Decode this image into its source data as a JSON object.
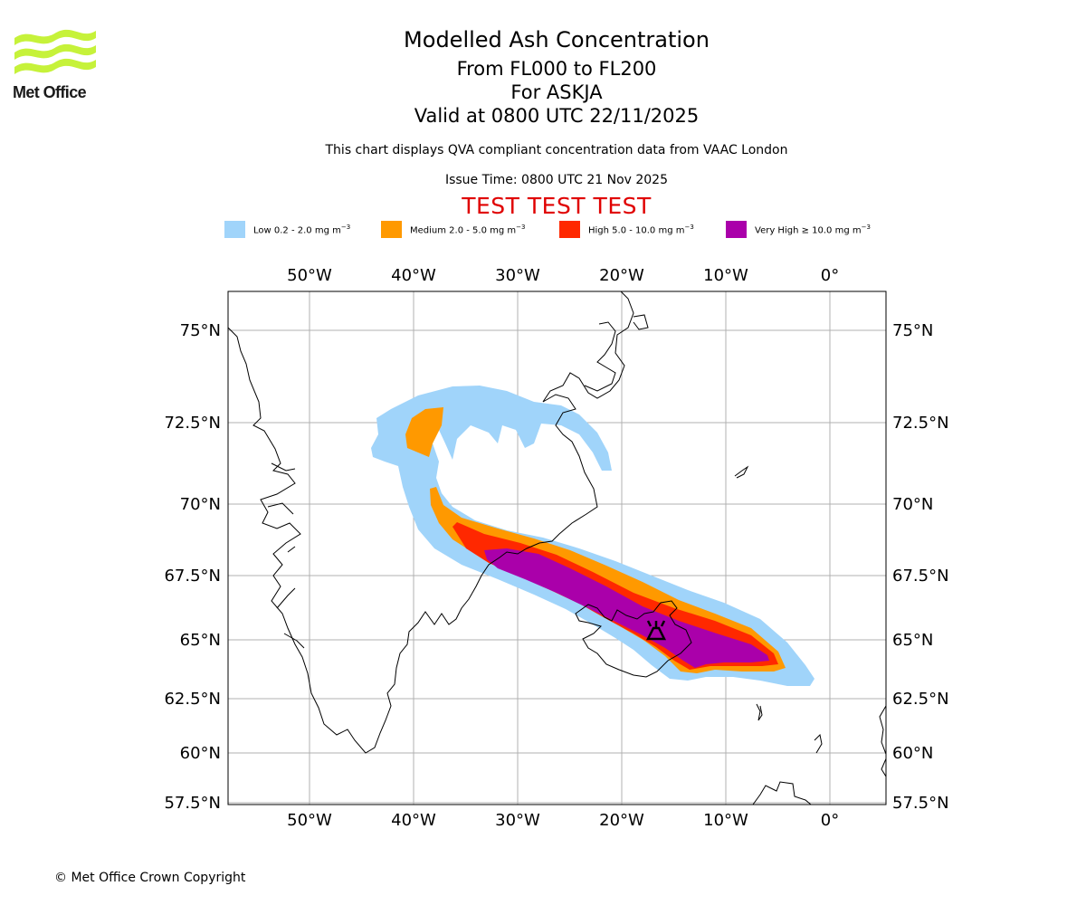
{
  "logo": {
    "text": "Met Office"
  },
  "header": {
    "title": "Modelled Ash Concentration",
    "levels": "From FL000 to FL200",
    "volcano": "For ASKJA",
    "valid": "Valid at 0800 UTC 22/11/2025",
    "note": "This chart displays QVA compliant concentration data from VAAC London",
    "issue": "Issue Time: 0800 UTC 21 Nov 2025",
    "test_banner": "TEST TEST TEST"
  },
  "legend": [
    {
      "label": "Low 0.2 - 2.0 mg m",
      "exp": "−3",
      "color": "#a0d4fa"
    },
    {
      "label": "Medium 2.0 - 5.0 mg m",
      "exp": "−3",
      "color": "#ff9900"
    },
    {
      "label": "High 5.0 - 10.0 mg m",
      "exp": "−3",
      "color": "#ff2800"
    },
    {
      "label": "Very High ≥ 10.0 mg m",
      "exp": "−3",
      "color": "#aa00aa"
    }
  ],
  "map": {
    "lon_labels": [
      "50°W",
      "40°W",
      "30°W",
      "20°W",
      "10°W",
      "0°"
    ],
    "lat_labels": [
      "75°N",
      "72.5°N",
      "70°N",
      "67.5°N",
      "65°N",
      "62.5°N",
      "60°N",
      "57.5°N"
    ],
    "source_icon": "volcano-icon"
  },
  "footer": {
    "copyright": "© Met Office Crown Copyright"
  }
}
